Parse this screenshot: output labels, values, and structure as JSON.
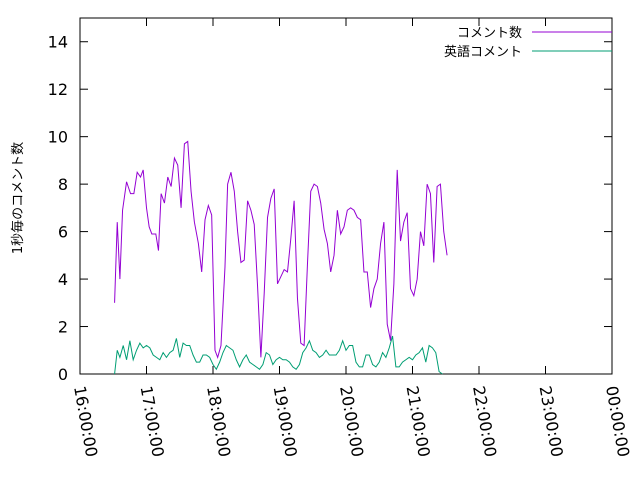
{
  "chart_data": {
    "type": "line",
    "ylabel": "1秒毎のコメント数",
    "xlabel": "",
    "title": "",
    "ylim": [
      0,
      15
    ],
    "y_ticks": [
      0,
      2,
      4,
      6,
      8,
      10,
      12,
      14
    ],
    "xlim": [
      16,
      24
    ],
    "x_ticks": [
      {
        "value": 16,
        "label": "16:00:00"
      },
      {
        "value": 17,
        "label": "17:00:00"
      },
      {
        "value": 18,
        "label": "18:00:00"
      },
      {
        "value": 19,
        "label": "19:00:00"
      },
      {
        "value": 20,
        "label": "20:00:00"
      },
      {
        "value": 21,
        "label": "21:00:00"
      },
      {
        "value": 22,
        "label": "22:00:00"
      },
      {
        "value": 23,
        "label": "23:00:00"
      },
      {
        "value": 24,
        "label": "00:00:00"
      }
    ],
    "grid": false,
    "legend_position": "top-right",
    "series": [
      {
        "name": "コメント数",
        "color": "#9400d3",
        "points": [
          [
            16.52,
            3.0
          ],
          [
            16.56,
            6.4
          ],
          [
            16.6,
            4.0
          ],
          [
            16.64,
            6.9
          ],
          [
            16.7,
            8.1
          ],
          [
            16.76,
            7.6
          ],
          [
            16.81,
            7.6
          ],
          [
            16.86,
            8.5
          ],
          [
            16.91,
            8.3
          ],
          [
            16.95,
            8.6
          ],
          [
            17.0,
            7.0
          ],
          [
            17.04,
            6.2
          ],
          [
            17.08,
            5.9
          ],
          [
            17.14,
            5.9
          ],
          [
            17.18,
            5.2
          ],
          [
            17.22,
            7.6
          ],
          [
            17.27,
            7.2
          ],
          [
            17.32,
            8.3
          ],
          [
            17.37,
            7.9
          ],
          [
            17.42,
            9.1
          ],
          [
            17.47,
            8.8
          ],
          [
            17.52,
            7.0
          ],
          [
            17.57,
            9.7
          ],
          [
            17.62,
            9.8
          ],
          [
            17.67,
            7.7
          ],
          [
            17.72,
            6.4
          ],
          [
            17.78,
            5.5
          ],
          [
            17.83,
            4.3
          ],
          [
            17.88,
            6.5
          ],
          [
            17.93,
            7.1
          ],
          [
            17.98,
            6.7
          ],
          [
            18.03,
            1.0
          ],
          [
            18.07,
            0.7
          ],
          [
            18.12,
            1.2
          ],
          [
            18.18,
            4.5
          ],
          [
            18.22,
            8.0
          ],
          [
            18.27,
            8.5
          ],
          [
            18.32,
            7.7
          ],
          [
            18.37,
            6.0
          ],
          [
            18.42,
            4.7
          ],
          [
            18.47,
            4.8
          ],
          [
            18.52,
            7.3
          ],
          [
            18.57,
            6.9
          ],
          [
            18.62,
            6.3
          ],
          [
            18.67,
            3.7
          ],
          [
            18.72,
            0.7
          ],
          [
            18.77,
            3.4
          ],
          [
            18.82,
            6.6
          ],
          [
            18.87,
            7.4
          ],
          [
            18.92,
            7.8
          ],
          [
            18.97,
            3.8
          ],
          [
            19.02,
            4.1
          ],
          [
            19.07,
            4.4
          ],
          [
            19.12,
            4.3
          ],
          [
            19.17,
            5.7
          ],
          [
            19.22,
            7.3
          ],
          [
            19.27,
            3.2
          ],
          [
            19.32,
            1.3
          ],
          [
            19.37,
            1.2
          ],
          [
            19.42,
            4.6
          ],
          [
            19.47,
            7.7
          ],
          [
            19.52,
            8.0
          ],
          [
            19.57,
            7.9
          ],
          [
            19.62,
            7.2
          ],
          [
            19.67,
            6.1
          ],
          [
            19.72,
            5.5
          ],
          [
            19.77,
            4.3
          ],
          [
            19.82,
            5.0
          ],
          [
            19.87,
            6.9
          ],
          [
            19.92,
            5.9
          ],
          [
            19.97,
            6.2
          ],
          [
            20.02,
            6.9
          ],
          [
            20.07,
            7.0
          ],
          [
            20.12,
            6.9
          ],
          [
            20.17,
            6.6
          ],
          [
            20.22,
            6.5
          ],
          [
            20.27,
            4.3
          ],
          [
            20.32,
            4.3
          ],
          [
            20.37,
            2.8
          ],
          [
            20.42,
            3.6
          ],
          [
            20.47,
            4.0
          ],
          [
            20.52,
            5.5
          ],
          [
            20.57,
            6.4
          ],
          [
            20.62,
            2.1
          ],
          [
            20.67,
            1.4
          ],
          [
            20.72,
            3.8
          ],
          [
            20.77,
            8.6
          ],
          [
            20.82,
            5.6
          ],
          [
            20.87,
            6.4
          ],
          [
            20.92,
            6.8
          ],
          [
            20.97,
            3.6
          ],
          [
            21.02,
            3.3
          ],
          [
            21.07,
            4.0
          ],
          [
            21.12,
            6.0
          ],
          [
            21.17,
            5.4
          ],
          [
            21.22,
            8.0
          ],
          [
            21.27,
            7.6
          ],
          [
            21.32,
            4.7
          ],
          [
            21.37,
            7.9
          ],
          [
            21.42,
            8.0
          ],
          [
            21.47,
            6.0
          ],
          [
            21.52,
            5.0
          ]
        ]
      },
      {
        "name": "英語コメント",
        "color": "#009e73",
        "points": [
          [
            16.52,
            0.0
          ],
          [
            16.56,
            1.0
          ],
          [
            16.6,
            0.7
          ],
          [
            16.65,
            1.2
          ],
          [
            16.7,
            0.6
          ],
          [
            16.75,
            1.4
          ],
          [
            16.8,
            0.6
          ],
          [
            16.85,
            1.0
          ],
          [
            16.9,
            1.3
          ],
          [
            16.95,
            1.1
          ],
          [
            17.0,
            1.2
          ],
          [
            17.05,
            1.1
          ],
          [
            17.1,
            0.8
          ],
          [
            17.15,
            0.7
          ],
          [
            17.2,
            0.6
          ],
          [
            17.25,
            0.9
          ],
          [
            17.3,
            0.7
          ],
          [
            17.35,
            0.9
          ],
          [
            17.4,
            1.0
          ],
          [
            17.45,
            1.5
          ],
          [
            17.5,
            0.7
          ],
          [
            17.55,
            1.3
          ],
          [
            17.6,
            1.2
          ],
          [
            17.65,
            1.2
          ],
          [
            17.7,
            0.8
          ],
          [
            17.75,
            0.5
          ],
          [
            17.8,
            0.5
          ],
          [
            17.85,
            0.8
          ],
          [
            17.9,
            0.8
          ],
          [
            17.95,
            0.7
          ],
          [
            18.0,
            0.4
          ],
          [
            18.05,
            0.2
          ],
          [
            18.1,
            0.5
          ],
          [
            18.15,
            0.9
          ],
          [
            18.2,
            1.2
          ],
          [
            18.25,
            1.1
          ],
          [
            18.3,
            1.0
          ],
          [
            18.35,
            0.6
          ],
          [
            18.4,
            0.3
          ],
          [
            18.45,
            0.6
          ],
          [
            18.5,
            0.8
          ],
          [
            18.55,
            0.5
          ],
          [
            18.6,
            0.4
          ],
          [
            18.65,
            0.3
          ],
          [
            18.7,
            0.2
          ],
          [
            18.75,
            0.4
          ],
          [
            18.8,
            0.9
          ],
          [
            18.85,
            0.8
          ],
          [
            18.9,
            0.4
          ],
          [
            18.95,
            0.6
          ],
          [
            19.0,
            0.7
          ],
          [
            19.05,
            0.6
          ],
          [
            19.1,
            0.6
          ],
          [
            19.15,
            0.5
          ],
          [
            19.2,
            0.3
          ],
          [
            19.25,
            0.2
          ],
          [
            19.3,
            0.4
          ],
          [
            19.35,
            0.9
          ],
          [
            19.4,
            1.1
          ],
          [
            19.45,
            1.4
          ],
          [
            19.5,
            1.0
          ],
          [
            19.55,
            0.9
          ],
          [
            19.6,
            0.7
          ],
          [
            19.65,
            0.8
          ],
          [
            19.7,
            1.0
          ],
          [
            19.75,
            0.8
          ],
          [
            19.8,
            0.8
          ],
          [
            19.85,
            0.8
          ],
          [
            19.9,
            1.0
          ],
          [
            19.95,
            1.4
          ],
          [
            20.0,
            1.0
          ],
          [
            20.05,
            1.2
          ],
          [
            20.1,
            1.2
          ],
          [
            20.15,
            0.5
          ],
          [
            20.2,
            0.3
          ],
          [
            20.25,
            0.3
          ],
          [
            20.3,
            0.8
          ],
          [
            20.35,
            0.8
          ],
          [
            20.4,
            0.4
          ],
          [
            20.45,
            0.3
          ],
          [
            20.5,
            0.5
          ],
          [
            20.55,
            0.9
          ],
          [
            20.6,
            0.7
          ],
          [
            20.65,
            1.1
          ],
          [
            20.7,
            1.6
          ],
          [
            20.75,
            0.3
          ],
          [
            20.8,
            0.3
          ],
          [
            20.85,
            0.5
          ],
          [
            20.9,
            0.6
          ],
          [
            20.95,
            0.7
          ],
          [
            21.0,
            0.6
          ],
          [
            21.05,
            0.8
          ],
          [
            21.1,
            0.9
          ],
          [
            21.15,
            1.1
          ],
          [
            21.2,
            0.5
          ],
          [
            21.25,
            1.2
          ],
          [
            21.3,
            1.1
          ],
          [
            21.35,
            0.9
          ],
          [
            21.4,
            0.1
          ],
          [
            21.45,
            0.0
          ]
        ]
      }
    ]
  }
}
